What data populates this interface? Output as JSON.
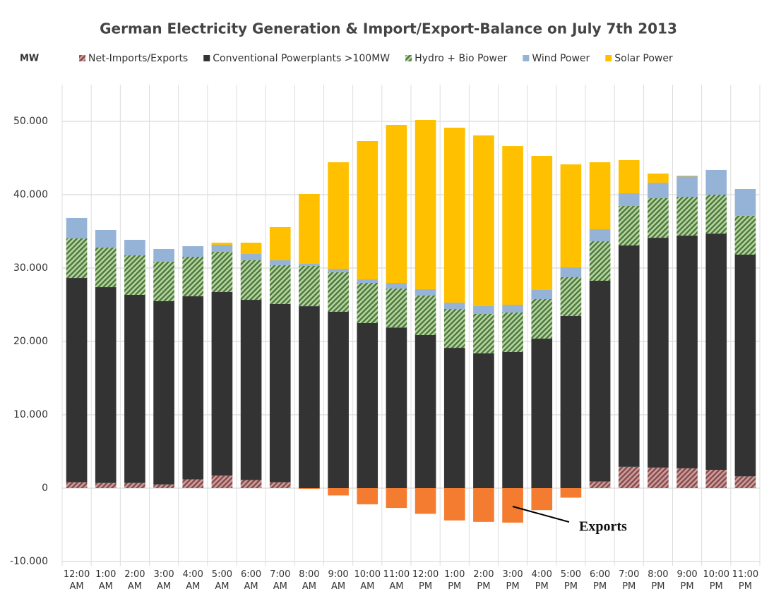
{
  "chart_data": {
    "type": "bar",
    "stacked": true,
    "title": "German Electricity Generation & Import/Export-Balance on July 7th 2013",
    "y_label": "MW",
    "annotation": "Exports",
    "categories": [
      "12:00 AM",
      "1:00 AM",
      "2:00 AM",
      "3:00 AM",
      "4:00 AM",
      "5:00 AM",
      "6:00 AM",
      "7:00 AM",
      "8:00 AM",
      "9:00 AM",
      "10:00 AM",
      "11:00 AM",
      "12:00 PM",
      "1:00 PM",
      "2:00 PM",
      "3:00 PM",
      "4:00 PM",
      "5:00 PM",
      "6:00 PM",
      "7:00 PM",
      "8:00 PM",
      "9:00 PM",
      "10:00 PM",
      "11:00 PM"
    ],
    "series": [
      {
        "name": "Net-Imports/Exports",
        "color": "#8c4b4b",
        "hatch": true,
        "negative_color": "#f47c30",
        "values": [
          800,
          700,
          700,
          500,
          1200,
          1700,
          1100,
          800,
          -100,
          -1000,
          -2200,
          -2700,
          -3500,
          -4400,
          -4600,
          -4700,
          -3000,
          -1300,
          900,
          2900,
          2800,
          2700,
          2500,
          1600
        ]
      },
      {
        "name": "Conventional Powerplants >100MW",
        "color": "#333333",
        "hatch": false,
        "values": [
          27850,
          26700,
          25650,
          24980,
          24950,
          25030,
          24570,
          24300,
          24800,
          24040,
          22500,
          21900,
          20870,
          19130,
          18370,
          18560,
          20380,
          23460,
          27370,
          30180,
          31330,
          31720,
          32200,
          30230
        ]
      },
      {
        "name": "Hydro + Bio Power",
        "color": "#4d7c3a",
        "hatch": true,
        "values": [
          5390,
          5390,
          5380,
          5390,
          5390,
          5480,
          5390,
          5280,
          5490,
          5380,
          5480,
          5310,
          5380,
          5290,
          5380,
          5380,
          5390,
          5290,
          5380,
          5380,
          5390,
          5290,
          5300,
          5290
        ]
      },
      {
        "name": "Wind Power",
        "color": "#95b3d7",
        "hatch": false,
        "values": [
          2790,
          2400,
          2120,
          1730,
          1440,
          960,
          860,
          680,
          290,
          480,
          480,
          770,
          870,
          870,
          1060,
          1060,
          1250,
          1350,
          1640,
          1730,
          2110,
          2790,
          3370,
          3650
        ]
      },
      {
        "name": "Solar Power",
        "color": "#ffc000",
        "hatch": false,
        "values": [
          0,
          0,
          0,
          0,
          0,
          290,
          1540,
          4520,
          9520,
          14520,
          18850,
          21540,
          23070,
          23840,
          23270,
          21630,
          18270,
          14030,
          9130,
          4520,
          1250,
          100,
          0,
          0
        ]
      }
    ],
    "ylim": [
      -10000,
      55000
    ],
    "yticks": [
      {
        "value": -10000,
        "label": "-10.000"
      },
      0,
      {
        "value": 10000,
        "label": "10.000"
      },
      {
        "value": 20000,
        "label": "20.000"
      },
      {
        "value": 30000,
        "label": "30.000"
      },
      {
        "value": 40000,
        "label": "40.000"
      },
      {
        "value": 50000,
        "label": "50.000"
      }
    ],
    "grid": true
  }
}
